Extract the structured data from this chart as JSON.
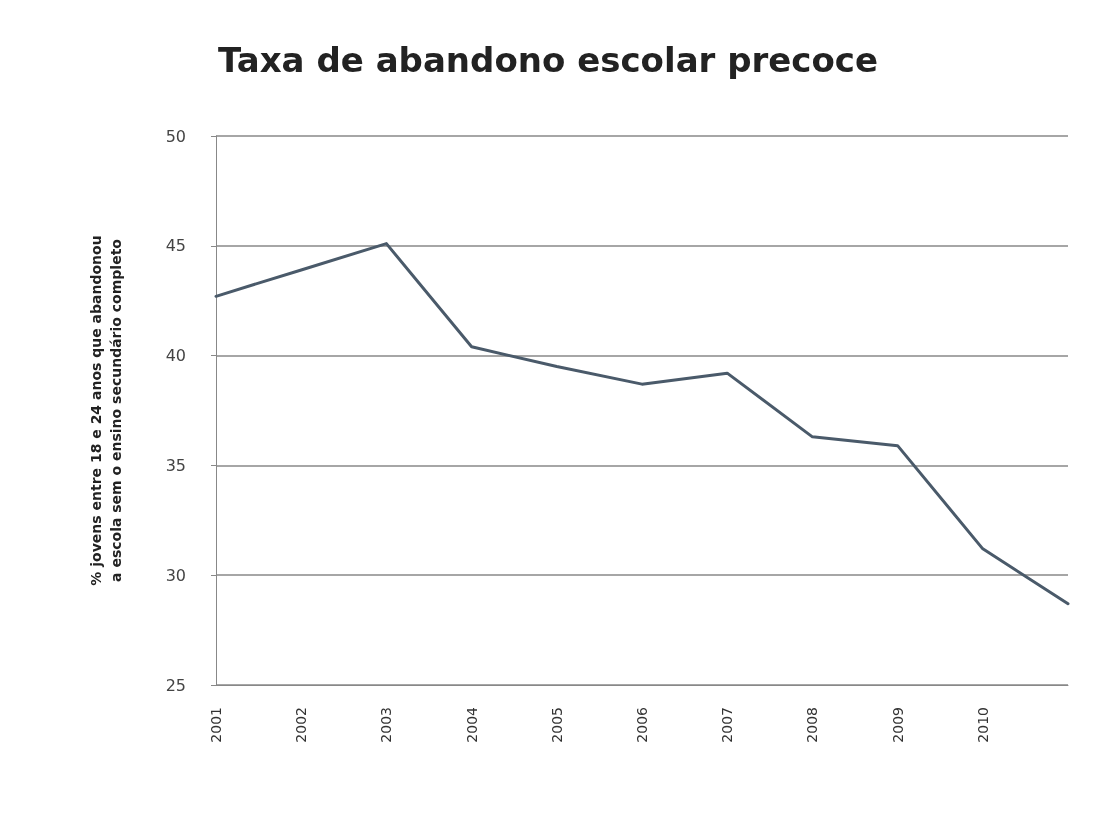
{
  "chart_data": {
    "type": "line",
    "title": "Taxa de abandono escolar precoce",
    "ylabel": "% jovens entre 18 e 24 anos que abandonou a escola sem o ensino secundário completo",
    "categories": [
      "2001",
      "2002",
      "2003",
      "2004",
      "2005",
      "2006",
      "2007",
      "2008",
      "2009",
      "2010",
      null
    ],
    "series": [
      {
        "color": "#4a5a6a",
        "values": [
          42.7,
          43.9,
          45.1,
          40.4,
          39.5,
          38.7,
          39.2,
          36.3,
          35.9,
          31.2,
          28.7
        ]
      }
    ],
    "ylim": [
      25,
      50
    ],
    "yticks": [
      25,
      30,
      35,
      40,
      45,
      50
    ],
    "grid": "y",
    "marker": "none",
    "line_style": "solid"
  }
}
